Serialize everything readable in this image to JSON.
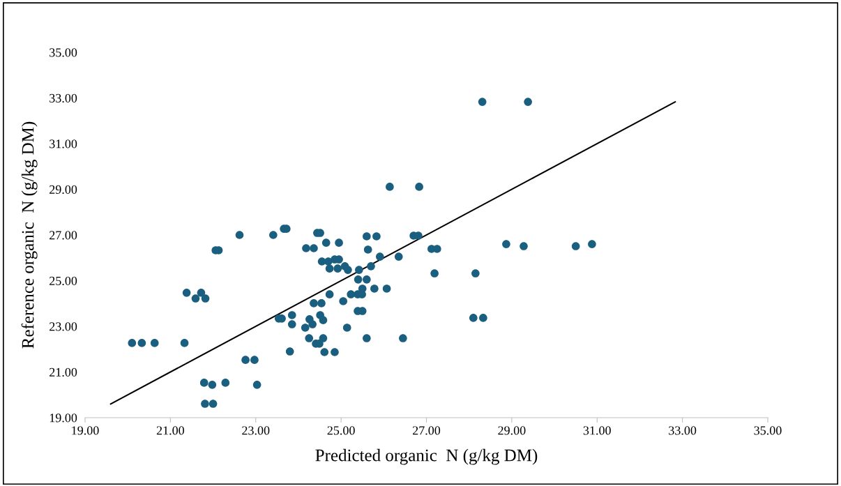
{
  "chart_data": {
    "type": "scatter",
    "xlabel": "Predicted organic  N (g/kg DM)",
    "ylabel": "Reference organic  N (g/kg DM)",
    "xlim": [
      19,
      35
    ],
    "ylim": [
      19,
      35
    ],
    "xticks": [
      {
        "value": 19,
        "label": "19.00"
      },
      {
        "value": 21,
        "label": "21.00"
      },
      {
        "value": 23,
        "label": "23.00"
      },
      {
        "value": 25,
        "label": "25.00"
      },
      {
        "value": 27,
        "label": "27.00"
      },
      {
        "value": 29,
        "label": "29.00"
      },
      {
        "value": 31,
        "label": "31.00"
      },
      {
        "value": 33,
        "label": "33.00"
      },
      {
        "value": 35,
        "label": "35.00"
      }
    ],
    "yticks": [
      {
        "value": 19,
        "label": "19.00"
      },
      {
        "value": 21,
        "label": "21.00"
      },
      {
        "value": 23,
        "label": "23.00"
      },
      {
        "value": 25,
        "label": "25.00"
      },
      {
        "value": 27,
        "label": "27.00"
      },
      {
        "value": 29,
        "label": "29.00"
      },
      {
        "value": 31,
        "label": "31.00"
      },
      {
        "value": 33,
        "label": "33.00"
      },
      {
        "value": 35,
        "label": "35.00"
      }
    ],
    "grid": false,
    "legend": false,
    "marker": "circle",
    "series": [
      {
        "color": "#1a5f80",
        "x": [
          20.1,
          20.33,
          20.63,
          21.33,
          21.38,
          21.59,
          21.72,
          21.82,
          22.06,
          22.13,
          22.62,
          21.79,
          21.98,
          22.29,
          21.81,
          22.0,
          22.76,
          22.97,
          23.03,
          23.8,
          23.41,
          23.66,
          23.72,
          24.44,
          24.51,
          24.65,
          24.95,
          24.18,
          24.36,
          25.6,
          25.83,
          26.7,
          26.81,
          25.63,
          25.91,
          26.35,
          27.12,
          27.25,
          24.55,
          24.7,
          24.85,
          24.95,
          24.73,
          24.92,
          25.09,
          25.16,
          25.42,
          25.7,
          27.19,
          28.15,
          25.4,
          25.6,
          25.5,
          25.78,
          26.07,
          24.73,
          25.23,
          25.39,
          25.49,
          25.05,
          24.36,
          24.54,
          25.39,
          25.5,
          23.54,
          23.61,
          23.85,
          23.85,
          24.26,
          24.33,
          24.51,
          24.58,
          24.16,
          25.14,
          28.1,
          28.33,
          24.25,
          24.58,
          24.41,
          24.49,
          25.6,
          26.45,
          24.61,
          24.85,
          26.14,
          26.83,
          28.31,
          29.38,
          28.87,
          29.28,
          30.5,
          30.88
        ],
        "values": [
          22.27,
          22.27,
          22.27,
          22.27,
          24.47,
          24.22,
          24.47,
          24.22,
          26.33,
          26.33,
          27.0,
          20.53,
          20.44,
          20.53,
          19.61,
          19.61,
          21.53,
          21.53,
          20.44,
          21.9,
          27.0,
          27.27,
          27.27,
          27.09,
          27.09,
          26.66,
          26.66,
          26.42,
          26.42,
          26.94,
          26.94,
          26.97,
          26.97,
          26.36,
          26.05,
          26.05,
          26.39,
          26.39,
          25.84,
          25.84,
          25.93,
          25.93,
          25.53,
          25.53,
          25.63,
          25.47,
          25.47,
          25.63,
          25.32,
          25.32,
          25.05,
          25.05,
          24.65,
          24.65,
          24.65,
          24.4,
          24.4,
          24.4,
          24.4,
          24.1,
          24.01,
          24.01,
          23.67,
          23.67,
          23.34,
          23.34,
          23.49,
          23.09,
          23.31,
          23.09,
          23.49,
          23.27,
          22.94,
          22.94,
          23.37,
          23.37,
          22.48,
          22.48,
          22.24,
          22.24,
          22.48,
          22.48,
          21.87,
          21.87,
          29.11,
          29.11,
          32.83,
          32.83,
          26.6,
          26.51,
          26.51,
          26.6
        ]
      },
      {
        "type": "line",
        "color": "#000000",
        "marker": "none",
        "line_style": "solid",
        "x": [
          19.6,
          32.83
        ],
        "values": [
          19.6,
          32.83
        ]
      }
    ]
  }
}
